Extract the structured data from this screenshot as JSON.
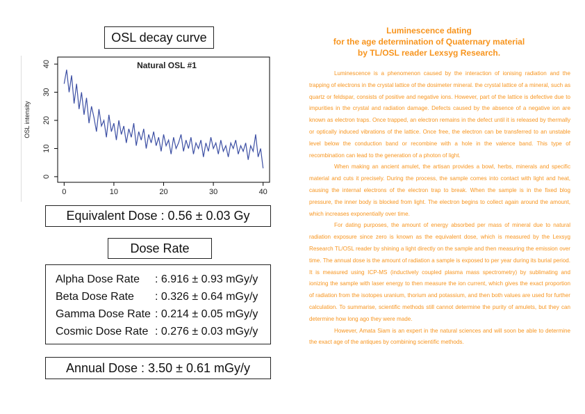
{
  "left": {
    "heading": "OSL decay curve",
    "equivalent_dose": "Equivalent Dose : 0.56 ± 0.03 Gy",
    "dose_rate_heading": "Dose Rate",
    "dose_rates": [
      [
        "Alpha Dose Rate",
        ": 6.916 ± 0.93 mGy/y"
      ],
      [
        "Beta Dose Rate",
        ": 0.326 ± 0.64 mGy/y"
      ],
      [
        "Gamma Dose Rate",
        ": 0.214 ± 0.05 mGy/y"
      ],
      [
        "Cosmic Dose Rate",
        ": 0.276 ± 0.03 mGy/y"
      ]
    ],
    "annual_dose": "Annual Dose : 3.50 ± 0.61 mGy/y"
  },
  "chart_data": {
    "type": "line",
    "title": "Natural OSL #1",
    "y_label": "OSL intensity",
    "color": "#3b4ea3",
    "xlim": [
      -1.3,
      41.3
    ],
    "ylim": [
      -2,
      42.5
    ],
    "xticks": [
      0,
      10,
      20,
      30,
      40
    ],
    "yticks": [
      0,
      10,
      20,
      30,
      40
    ],
    "x": [
      0,
      0.5,
      1,
      1.5,
      2,
      2.5,
      3,
      3.5,
      4,
      4.5,
      5,
      5.5,
      6,
      6.5,
      7,
      7.5,
      8,
      8.5,
      9,
      9.5,
      10,
      10.5,
      11,
      11.5,
      12,
      12.5,
      13,
      13.5,
      14,
      14.5,
      15,
      15.5,
      16,
      16.5,
      17,
      17.5,
      18,
      18.5,
      19,
      19.5,
      20,
      20.5,
      21,
      21.5,
      22,
      22.5,
      23,
      23.5,
      24,
      24.5,
      25,
      25.5,
      26,
      26.5,
      27,
      27.5,
      28,
      28.5,
      29,
      29.5,
      30,
      30.5,
      31,
      31.5,
      32,
      32.5,
      33,
      33.5,
      34,
      34.5,
      35,
      35.5,
      36,
      36.5,
      37,
      37.5,
      38,
      38.5,
      39,
      39.5,
      40
    ],
    "values": [
      33,
      38,
      30,
      36,
      26,
      33,
      24,
      30,
      22,
      28,
      19,
      25,
      21,
      16,
      24,
      18,
      20,
      14,
      22,
      16,
      19,
      13,
      20,
      15,
      18,
      12,
      17,
      14,
      19,
      11,
      16,
      13,
      17,
      10,
      15,
      12,
      16,
      11,
      14,
      9,
      15,
      11,
      13,
      8,
      14,
      10,
      12,
      15,
      9,
      13,
      10,
      14,
      8,
      12,
      10,
      13,
      7,
      12,
      9,
      14,
      10,
      12,
      8,
      13,
      9,
      11,
      7,
      12,
      10,
      13,
      8,
      11,
      9,
      12,
      6,
      11,
      9,
      15,
      7,
      10,
      3
    ]
  },
  "right": {
    "title": [
      "Luminescence dating",
      "for the age determination of Quaternary material",
      "by TL/OSL reader Lexsyg Research."
    ],
    "paragraphs": [
      "Luminescence is a phenomenon caused by the interaction of ionising radiation and the trapping of electrons in the crystal lattice of the dosimeter mineral. the crystal lattice of a mineral, such as quartz or feldspar, consists of positive and negative ions. However, part of the lattice is defective due to impurities in the crystal and radiation damage. Defects caused by the absence of a negative ion are known as electron traps. Once trapped, an electron remains in the defect until it is released by thermally or optically induced vibrations of the lattice. Once free, the electron can be transferred to an unstable level below the conduction band or recombine with a hole in the valence band. This type of recombination can lead to the generation of a photon of light.",
      "When making an ancient amulet, the artisan provides a bowl, herbs, minerals and specific material and cuts it precisely. During the process, the sample comes into contact with light and heat, causing the internal electrons of the electron trap to break. When the sample is in the fixed blog pressure, the inner body is blocked from light. The electron begins to collect again around the amount, which increases exponentially over time.",
      "For dating purposes, the amount of energy absorbed per mass of mineral due to natural radiation exposure since zero is known as the equivalent dose, which is measured by the Lexsyg Research TL/OSL reader by shining a light directly on the sample and then measuring the emission over time. The annual dose is the amount of radiation a sample is exposed to per year during its burial period. It is measured using ICP-MS (inductively coupled plasma mass spectrometry) by sublimating and ionizing the sample with laser energy to then measure the ion current, which gives the exact proportion of radiation from the isotopes uranium, thorium and potassium, and then both values are used for further calculation. To summarise, scientific methods still cannot determine the purity of amulets, but they can determine how long ago they were made.",
      "However, Amata Siam is an expert in the natural sciences and will soon be able to determine the exact age of the antiques by combining scientific methods."
    ]
  }
}
